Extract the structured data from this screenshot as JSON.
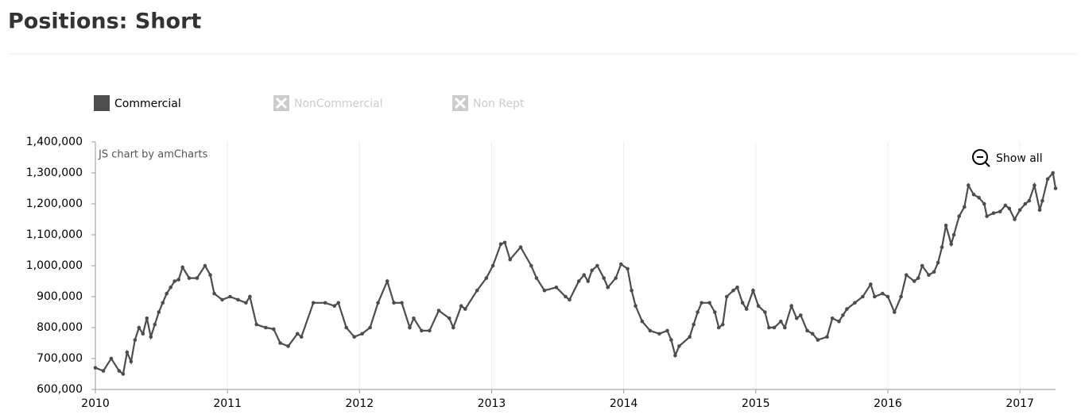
{
  "chart_data": {
    "type": "line",
    "title": "Positions: Short",
    "credit": "JS chart by amCharts",
    "zoom_button": "Show all",
    "x": [
      2010.0,
      2010.06,
      2010.12,
      2010.18,
      2010.21,
      2010.24,
      2010.27,
      2010.3,
      2010.33,
      2010.36,
      2010.39,
      2010.42,
      2010.45,
      2010.48,
      2010.51,
      2010.54,
      2010.57,
      2010.6,
      2010.63,
      2010.66,
      2010.71,
      2010.77,
      2010.83,
      2010.87,
      2010.9,
      2010.96,
      2011.02,
      2011.08,
      2011.14,
      2011.17,
      2011.22,
      2011.29,
      2011.35,
      2011.4,
      2011.46,
      2011.53,
      2011.56,
      2011.65,
      2011.74,
      2011.81,
      2011.84,
      2011.9,
      2011.96,
      2012.02,
      2012.08,
      2012.14,
      2012.21,
      2012.26,
      2012.32,
      2012.38,
      2012.41,
      2012.47,
      2012.53,
      2012.6,
      2012.68,
      2012.71,
      2012.77,
      2012.8,
      2012.89,
      2012.96,
      2013.01,
      2013.07,
      2013.1,
      2013.14,
      2013.22,
      2013.3,
      2013.34,
      2013.4,
      2013.49,
      2013.56,
      2013.59,
      2013.66,
      2013.7,
      2013.73,
      2013.76,
      2013.8,
      2013.85,
      2013.88,
      2013.94,
      2013.98,
      2014.03,
      2014.06,
      2014.09,
      2014.14,
      2014.2,
      2014.27,
      2014.33,
      2014.36,
      2014.39,
      2014.42,
      2014.5,
      2014.53,
      2014.56,
      2014.59,
      2014.65,
      2014.69,
      2014.72,
      2014.75,
      2014.78,
      2014.83,
      2014.86,
      2014.9,
      2014.93,
      2014.98,
      2015.02,
      2015.07,
      2015.1,
      2015.14,
      2015.19,
      2015.22,
      2015.27,
      2015.31,
      2015.34,
      2015.39,
      2015.43,
      2015.47,
      2015.54,
      2015.58,
      2015.63,
      2015.66,
      2015.69,
      2015.75,
      2015.81,
      2015.87,
      2015.9,
      2015.96,
      2016.0,
      2016.05,
      2016.1,
      2016.14,
      2016.2,
      2016.23,
      2016.26,
      2016.31,
      2016.35,
      2016.38,
      2016.41,
      2016.44,
      2016.48,
      2016.5,
      2016.54,
      2016.58,
      2016.61,
      2016.65,
      2016.69,
      2016.73,
      2016.75,
      2016.8,
      2016.85,
      2016.89,
      2016.92,
      2016.96,
      2017.0,
      2017.04,
      2017.07,
      2017.11,
      2017.15,
      2017.17,
      2017.21,
      2017.25,
      2017.27
    ],
    "series": [
      {
        "name": "Commercial",
        "color": "#4d4d4d",
        "values": [
          670000,
          660000,
          700000,
          660000,
          650000,
          720000,
          690000,
          760000,
          800000,
          780000,
          830000,
          770000,
          810000,
          850000,
          880000,
          910000,
          930000,
          950000,
          955000,
          995000,
          960000,
          960000,
          1000000,
          970000,
          910000,
          890000,
          900000,
          890000,
          880000,
          900000,
          810000,
          800000,
          795000,
          750000,
          740000,
          780000,
          770000,
          880000,
          880000,
          870000,
          880000,
          800000,
          770000,
          780000,
          800000,
          880000,
          950000,
          880000,
          880000,
          800000,
          830000,
          790000,
          790000,
          855000,
          830000,
          800000,
          870000,
          860000,
          920000,
          960000,
          1000000,
          1070000,
          1075000,
          1020000,
          1060000,
          1000000,
          960000,
          920000,
          930000,
          900000,
          890000,
          950000,
          970000,
          950000,
          985000,
          1000000,
          960000,
          930000,
          960000,
          1005000,
          990000,
          920000,
          870000,
          820000,
          790000,
          780000,
          790000,
          760000,
          710000,
          740000,
          770000,
          810000,
          850000,
          880000,
          880000,
          850000,
          800000,
          810000,
          900000,
          920000,
          930000,
          880000,
          860000,
          920000,
          870000,
          850000,
          800000,
          800000,
          820000,
          800000,
          870000,
          830000,
          840000,
          790000,
          780000,
          760000,
          770000,
          830000,
          820000,
          840000,
          860000,
          880000,
          900000,
          940000,
          900000,
          910000,
          900000,
          850000,
          900000,
          970000,
          950000,
          960000,
          1000000,
          970000,
          980000,
          1010000,
          1060000,
          1130000,
          1070000,
          1100000,
          1160000,
          1190000,
          1260000,
          1230000,
          1220000,
          1200000,
          1160000,
          1170000,
          1175000,
          1195000,
          1185000,
          1150000,
          1180000,
          1200000,
          1210000,
          1260000,
          1180000,
          1210000,
          1280000,
          1300000,
          1250000
        ]
      }
    ],
    "hidden_series": [
      {
        "name": "NonCommercial"
      },
      {
        "name": "Non Rept"
      }
    ],
    "xlim": [
      2010,
      2017.27
    ],
    "xticks": [
      2010,
      2011,
      2012,
      2013,
      2014,
      2015,
      2016,
      2017
    ],
    "ylim": [
      600000,
      1400000
    ],
    "yticks": [
      {
        "value": 600000,
        "label": "600,000"
      },
      {
        "value": 700000,
        "label": "700,000"
      },
      {
        "value": 800000,
        "label": "800,000"
      },
      {
        "value": 900000,
        "label": "900,000"
      },
      {
        "value": 1000000,
        "label": "1,000,000"
      },
      {
        "value": 1100000,
        "label": "1,100,000"
      },
      {
        "value": 1200000,
        "label": "1,200,000"
      },
      {
        "value": 1300000,
        "label": "1,300,000"
      },
      {
        "value": 1400000,
        "label": "1,400,000"
      }
    ],
    "grid": "x",
    "hidden_color": "#cccccc"
  }
}
